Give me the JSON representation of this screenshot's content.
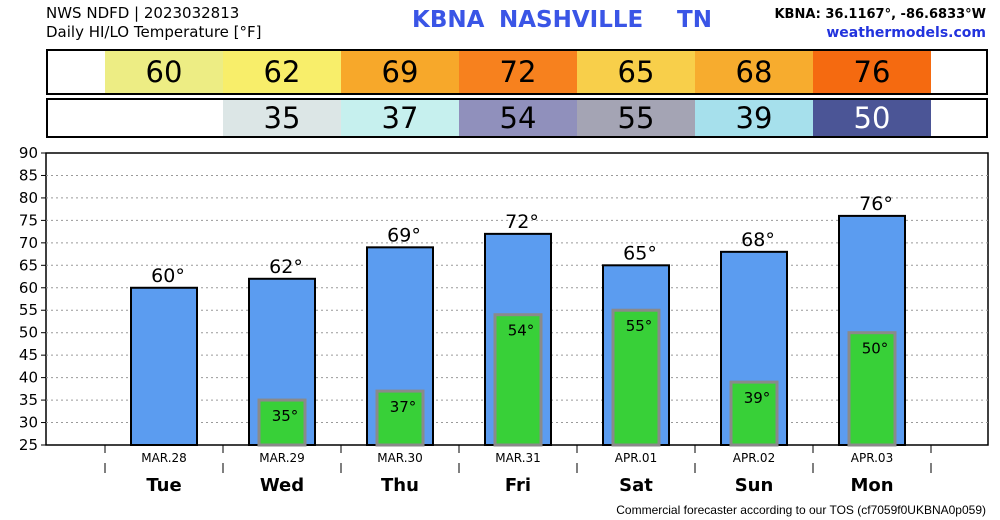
{
  "header": {
    "line1": "NWS NDFD | 2023032813",
    "line2": "Daily HI/LO Temperature [°F]",
    "station_code": "KBNA",
    "station_name": "NASHVILLE",
    "state": "TN",
    "coords": "KBNA: 36.1167°, -86.6833°W",
    "site": "weathermodels.com"
  },
  "footer": "Commercial forecaster according to our TOS (cf7059f0UKBNA0p059)",
  "colors": {
    "hi_bar": "#5b9cf0",
    "lo_bar": "#38d038",
    "lo_bar_edge": "#8a8a8a",
    "bar_outline": "#000000"
  },
  "strips": {
    "hi": [
      {
        "value": "60",
        "color": "#eded84"
      },
      {
        "value": "62",
        "color": "#f8ee6a"
      },
      {
        "value": "69",
        "color": "#f7a82a"
      },
      {
        "value": "72",
        "color": "#f7811e"
      },
      {
        "value": "65",
        "color": "#f8cf4a"
      },
      {
        "value": "68",
        "color": "#f7ac2e"
      },
      {
        "value": "76",
        "color": "#f56a10"
      }
    ],
    "lo": [
      {
        "value": "",
        "color": "#ffffff",
        "text_color": "#000000"
      },
      {
        "value": "35",
        "color": "#dce6e6",
        "text_color": "#000000"
      },
      {
        "value": "37",
        "color": "#c6f0ee",
        "text_color": "#000000"
      },
      {
        "value": "54",
        "color": "#9090bc",
        "text_color": "#000000"
      },
      {
        "value": "55",
        "color": "#a4a4b4",
        "text_color": "#000000"
      },
      {
        "value": "39",
        "color": "#a6e0ec",
        "text_color": "#000000"
      },
      {
        "value": "50",
        "color": "#4b5596",
        "text_color": "#ffffff"
      }
    ]
  },
  "chart_data": {
    "type": "bar",
    "dates": [
      "MAR.28",
      "MAR.29",
      "MAR.30",
      "MAR.31",
      "APR.01",
      "APR.02",
      "APR.03"
    ],
    "days": [
      "Tue",
      "Wed",
      "Thu",
      "Fri",
      "Sat",
      "Sun",
      "Mon"
    ],
    "series": [
      {
        "values": [
          60,
          62,
          69,
          72,
          65,
          68,
          76
        ],
        "labels": [
          "60°",
          "62°",
          "69°",
          "72°",
          "65°",
          "68°",
          "76°"
        ]
      },
      {
        "values": [
          null,
          35,
          37,
          54,
          55,
          39,
          50
        ],
        "labels": [
          "",
          "35°",
          "37°",
          "54°",
          "55°",
          "39°",
          "50°"
        ]
      }
    ],
    "ylim": [
      25,
      90
    ],
    "yticks": [
      "25",
      "30",
      "35",
      "40",
      "45",
      "50",
      "55",
      "60",
      "65",
      "70",
      "75",
      "80",
      "85",
      "90"
    ],
    "grid": true
  }
}
